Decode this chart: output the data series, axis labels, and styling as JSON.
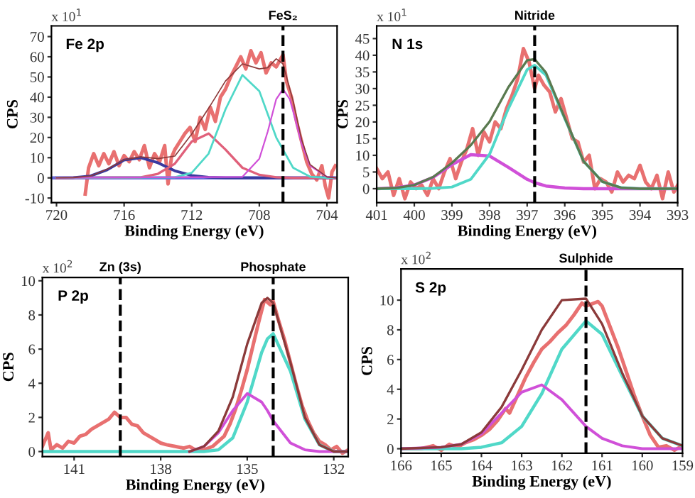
{
  "chart_data": [
    {
      "type": "line",
      "xlabel": "Binding Energy (eV)",
      "ylabel": "CPS",
      "annotations": [
        "x 10$^{1}$",
        "Fe 2p"
      ],
      "xlim": [
        720.3,
        703.4
      ],
      "xticks": [
        720,
        716,
        712,
        708,
        704
      ],
      "ylim": [
        -12.3,
        75.3
      ],
      "yticks": [
        -10,
        0,
        10,
        20,
        30,
        40,
        50,
        60,
        70
      ],
      "ref_lines": [
        {
          "axis": "x",
          "value": 706.6,
          "label": "FeS₂",
          "color": "#000000",
          "line_style": "dashed"
        }
      ],
      "series": [
        {
          "color": "#e87070",
          "x": [
            718.3,
            718.1,
            717.8,
            717.5,
            717.2,
            716.9,
            716.6,
            716.3,
            716,
            715.7,
            715.4,
            715.1,
            714.8,
            714.5,
            714.2,
            713.9,
            713.6,
            713.4,
            713.2,
            713,
            712.7,
            712.4,
            712.1,
            711.8,
            711.5,
            711.2,
            710.9,
            710.6,
            710.3,
            710,
            709.7,
            709.4,
            709.1,
            708.8,
            708.5,
            708.2,
            707.9,
            707.6,
            707.3,
            707,
            706.8,
            706.6,
            706.4,
            706.1,
            705.8,
            705.5,
            705.2,
            704.9,
            704.6,
            704.3,
            704.1,
            703.9,
            703.7,
            703.5
          ],
          "values": [
            -8,
            5,
            12,
            6,
            12,
            7,
            13,
            6,
            11,
            8,
            13,
            9,
            16,
            5,
            12,
            8,
            16,
            -3,
            10,
            14,
            18,
            22,
            25,
            18,
            30,
            24,
            35,
            28,
            40,
            44,
            50,
            55,
            60,
            54,
            63,
            57,
            62,
            52,
            57,
            55,
            58,
            61,
            48,
            40,
            28,
            18,
            8,
            2,
            -1,
            6,
            -4,
            -10,
            3,
            6
          ]
        },
        {
          "color": "#6a6ae0",
          "x": [
            720.3,
            703.4
          ],
          "values": [
            0,
            0
          ]
        },
        {
          "color": "#3a3aa0",
          "x": [
            720,
            719,
            718,
            717,
            716,
            715,
            714,
            713,
            712,
            711,
            710,
            703.4
          ],
          "values": [
            0,
            0.1,
            0.9,
            4,
            8.8,
            10,
            7.5,
            3.5,
            1.2,
            0.3,
            0,
            0
          ]
        },
        {
          "color": "#e0607a",
          "x": [
            720,
            715,
            714,
            713,
            712,
            711,
            710,
            709,
            708,
            707,
            706,
            703.4
          ],
          "values": [
            0,
            0.3,
            2,
            7,
            18,
            22,
            14,
            5,
            1.5,
            0.3,
            0,
            0
          ]
        },
        {
          "color": "#50d8c8",
          "x": [
            720,
            713,
            712,
            711,
            710,
            709,
            708,
            707,
            706,
            705,
            704,
            703.4
          ],
          "values": [
            0,
            0.3,
            2.5,
            12,
            34,
            51,
            43,
            20,
            5,
            0.6,
            0,
            0
          ]
        },
        {
          "color": "#d050d8",
          "x": [
            720,
            709,
            708,
            707.5,
            707,
            706.6,
            706.2,
            706,
            705.5,
            705,
            704,
            703.4
          ],
          "values": [
            0,
            0.5,
            9.5,
            23,
            39,
            44,
            39,
            33,
            17,
            6,
            0.5,
            0
          ]
        },
        {
          "color": "#8b3a3a",
          "x": [
            720,
            719,
            718,
            717,
            716,
            715,
            714,
            713,
            712,
            711,
            710,
            709,
            708,
            707.5,
            707,
            706.6,
            706,
            705.5,
            705,
            704,
            703.4
          ],
          "values": [
            0,
            0.1,
            0.9,
            4.3,
            9,
            10.4,
            9.5,
            10.8,
            21.7,
            34.5,
            48,
            56.5,
            54,
            54.6,
            59,
            56.5,
            38,
            19,
            6.6,
            0.5,
            0
          ]
        }
      ]
    },
    {
      "type": "line",
      "xlabel": "Binding Energy (eV)",
      "ylabel": "CPS",
      "annotations": [
        "x 10$^{1}$",
        "N 1s"
      ],
      "xlim": [
        401,
        393
      ],
      "xticks": [
        401,
        400,
        399,
        398,
        397,
        396,
        395,
        394,
        393
      ],
      "ylim": [
        -4.2,
        48.8
      ],
      "yticks": [
        0,
        5,
        10,
        15,
        20,
        25,
        30,
        35,
        40,
        45
      ],
      "ref_lines": [
        {
          "axis": "x",
          "value": 396.8,
          "label": "Nitride",
          "color": "#000000",
          "line_style": "dashed"
        }
      ],
      "series": [
        {
          "color": "#e87070",
          "x": [
            401,
            400.85,
            400.7,
            400.55,
            400.4,
            400.25,
            400.1,
            399.95,
            399.8,
            399.65,
            399.5,
            399.35,
            399.2,
            399.05,
            398.9,
            398.75,
            398.6,
            398.45,
            398.3,
            398.15,
            398,
            397.85,
            397.7,
            397.55,
            397.4,
            397.25,
            397.1,
            396.95,
            396.8,
            396.7,
            396.55,
            396.4,
            396.25,
            396.1,
            395.95,
            395.8,
            395.65,
            395.5,
            395.35,
            395.2,
            395.05,
            394.9,
            394.75,
            394.6,
            394.45,
            394.3,
            394.15,
            394,
            393.85,
            393.7,
            393.55,
            393.4,
            393.25,
            393.1,
            393
          ],
          "values": [
            6,
            3,
            5,
            -2,
            3,
            -3,
            2,
            0,
            1,
            -2,
            3,
            0,
            5,
            9,
            3,
            8,
            12,
            18,
            10,
            17,
            14,
            20,
            18,
            24,
            28,
            33,
            42,
            38,
            30,
            34,
            31,
            29,
            23,
            27,
            21,
            15,
            14,
            8,
            10,
            0,
            3,
            2,
            -1,
            5,
            2,
            4,
            3,
            7,
            2,
            0,
            4,
            -3,
            5,
            -1,
            1
          ]
        },
        {
          "color": "#d050d8",
          "x": [
            401,
            400.5,
            400,
            399.5,
            399,
            398.5,
            398,
            397.5,
            397,
            396.8,
            396.5,
            396,
            395.5,
            395,
            394.5,
            394,
            393
          ],
          "values": [
            0,
            0.2,
            1.1,
            3.4,
            7.2,
            10.2,
            9.8,
            6.4,
            2.8,
            1.8,
            0.8,
            0.2,
            0,
            0,
            0,
            0,
            0
          ]
        },
        {
          "color": "#50d8c8",
          "x": [
            401,
            400.5,
            400,
            399.5,
            399,
            398.5,
            398,
            397.5,
            397,
            396.8,
            396.5,
            396,
            395.5,
            395,
            394.5,
            394,
            393
          ],
          "values": [
            0,
            0,
            0,
            0.1,
            0.5,
            2.8,
            10.3,
            24,
            35.7,
            37,
            34,
            21,
            8.2,
            2.1,
            0.3,
            0,
            0
          ]
        },
        {
          "color": "#5a7a50",
          "x": [
            401,
            400.5,
            400,
            399.5,
            399,
            398.5,
            398,
            397.5,
            397,
            396.8,
            396.5,
            396,
            395.5,
            395,
            394.5,
            394,
            393
          ],
          "values": [
            0,
            0.2,
            1.1,
            3.5,
            7.7,
            13,
            20.1,
            30.4,
            38.5,
            38.8,
            34.8,
            21.2,
            8.2,
            2.1,
            0.3,
            0,
            0
          ]
        }
      ]
    },
    {
      "type": "line",
      "xlabel": "Binding Energy (eV)",
      "ylabel": "CPS",
      "annotations": [
        "x 10$^{2}$",
        "P 2p"
      ],
      "xlim": [
        142.1,
        131.5
      ],
      "xticks": [
        141,
        138,
        135,
        132
      ],
      "ylim": [
        -0.3,
        10.2
      ],
      "yticks": [
        0,
        2,
        4,
        6,
        8,
        10
      ],
      "ref_lines": [
        {
          "axis": "x",
          "value": 139.4,
          "label": "Zn (3s)",
          "color": "#000000",
          "line_style": "dashed"
        },
        {
          "axis": "x",
          "value": 134.1,
          "label": "Phosphate",
          "color": "#000000",
          "line_style": "dashed"
        }
      ],
      "series": [
        {
          "color": "#e87070",
          "x": [
            142.1,
            141.9,
            141.8,
            141.6,
            141.4,
            141.2,
            141,
            140.8,
            140.6,
            140.4,
            140.2,
            140,
            139.8,
            139.6,
            139.4,
            139.2,
            139,
            138.8,
            138.6,
            138.4,
            138.2,
            138,
            137.8,
            137.5,
            137.2,
            137,
            136.8,
            136.5,
            136.2,
            136,
            135.8,
            135.6,
            135.4,
            135.2,
            135,
            134.8,
            134.6,
            134.4,
            134.2,
            134.1,
            133.9,
            133.7,
            133.5,
            133.3,
            133.1,
            132.9,
            132.7,
            132.5,
            132.3,
            132.1,
            131.9,
            131.7,
            131.5
          ],
          "values": [
            0.3,
            1.1,
            0.1,
            0.4,
            0.2,
            0.6,
            0.5,
            0.9,
            1.0,
            1.3,
            1.5,
            1.7,
            1.9,
            2.3,
            2.0,
            2.0,
            1.6,
            1.5,
            1.1,
            0.9,
            0.7,
            0.5,
            0.4,
            0.3,
            0.2,
            0.3,
            0.1,
            0.1,
            0.3,
            0.6,
            0.9,
            1.6,
            2.5,
            3.6,
            4.8,
            6.2,
            7.6,
            8.9,
            8.6,
            8.8,
            7.6,
            6.5,
            5.2,
            3.9,
            2.7,
            1.8,
            1.1,
            0.6,
            0.4,
            0.1,
            0.3,
            -0.1,
            0.1
          ]
        },
        {
          "color": "#50d8c8",
          "x": [
            142.1,
            137,
            136.5,
            136,
            135.5,
            135,
            134.5,
            134.3,
            134.1,
            133.5,
            133,
            132.5,
            132,
            131.5
          ],
          "values": [
            0,
            0,
            0,
            0.1,
            0.8,
            2.9,
            5.8,
            6.6,
            6.9,
            4.7,
            1.9,
            0.4,
            0,
            0
          ]
        },
        {
          "color": "#d050d8",
          "x": [
            137,
            136.5,
            136,
            135.5,
            135,
            134.5,
            134.3,
            134.1,
            133.5,
            133,
            132.5,
            132,
            131.5
          ],
          "values": [
            0,
            0.3,
            1.1,
            2.4,
            3.4,
            2.9,
            2.4,
            1.8,
            0.5,
            0.1,
            0,
            0,
            0
          ]
        },
        {
          "color": "#8b3a3a",
          "x": [
            137,
            136.5,
            136,
            135.5,
            135,
            134.5,
            134.3,
            134.1,
            133.5,
            133,
            132.5,
            132,
            131.5
          ],
          "values": [
            0,
            0.3,
            1.2,
            3.2,
            6.3,
            8.7,
            9.0,
            8.7,
            5.2,
            2.0,
            0.4,
            0,
            0
          ]
        }
      ]
    },
    {
      "type": "line",
      "xlabel": "Binding Energy (eV)",
      "ylabel": "CPS",
      "annotations": [
        "x 10$^{2}$",
        "S 2p"
      ],
      "xlim": [
        166,
        159
      ],
      "xticks": [
        166,
        165,
        164,
        163,
        162,
        161,
        160,
        159
      ],
      "ylim": [
        -0.3,
        12.1
      ],
      "yticks": [
        0,
        2,
        4,
        6,
        8,
        10
      ],
      "ref_lines": [
        {
          "axis": "x",
          "value": 161.4,
          "label": "Sulphide",
          "color": "#000000",
          "line_style": "dashed"
        }
      ],
      "series": [
        {
          "color": "#e87070",
          "x": [
            166,
            165.5,
            165.2,
            165,
            164.8,
            164.6,
            164.4,
            164.2,
            164,
            163.8,
            163.6,
            163.4,
            163.3,
            163.1,
            162.9,
            162.7,
            162.5,
            162.3,
            162.1,
            161.9,
            161.7,
            161.5,
            161.4,
            161.3,
            161.1,
            161,
            160.8,
            160.6,
            160.4,
            160.2,
            160,
            159.8,
            159.6,
            159.4,
            159.2,
            159
          ],
          "values": [
            0,
            0,
            0.2,
            -0.1,
            0.3,
            0.1,
            0.4,
            0.6,
            0.9,
            1.3,
            1.9,
            2.7,
            2.4,
            3.6,
            4.8,
            5.8,
            6.7,
            7.2,
            7.8,
            8.3,
            9.0,
            9.8,
            9.6,
            9.7,
            9.9,
            9.6,
            8.2,
            6.8,
            5.2,
            3.6,
            2.2,
            0.9,
            0.1,
            0.2,
            -0.1,
            0.2
          ]
        },
        {
          "color": "#50d8c8",
          "x": [
            166,
            165,
            164.5,
            164,
            163.5,
            163,
            162.5,
            162,
            161.4,
            161,
            160.5,
            160,
            159.5,
            159
          ],
          "values": [
            0,
            0,
            0,
            0.1,
            0.4,
            1.5,
            3.7,
            6.7,
            8.6,
            7.7,
            4.9,
            2.2,
            0.7,
            0.2
          ]
        },
        {
          "color": "#d050d8",
          "x": [
            166,
            165,
            164.5,
            164,
            163.5,
            163,
            162.5,
            162,
            161.4,
            161,
            160.5,
            160,
            159.5,
            159
          ],
          "values": [
            0,
            0.1,
            0.3,
            1.0,
            2.4,
            3.8,
            4.3,
            3.3,
            1.5,
            0.7,
            0.2,
            0,
            0,
            0
          ]
        },
        {
          "color": "#8b3a3a",
          "x": [
            166,
            165,
            164.5,
            164,
            163.5,
            163,
            162.5,
            162,
            161.4,
            161,
            160.5,
            160,
            159.5,
            159
          ],
          "values": [
            0,
            0.1,
            0.3,
            1.1,
            2.8,
            5.3,
            8.0,
            10.0,
            10.1,
            8.4,
            5.1,
            2.2,
            0.7,
            0.2
          ]
        }
      ]
    }
  ]
}
